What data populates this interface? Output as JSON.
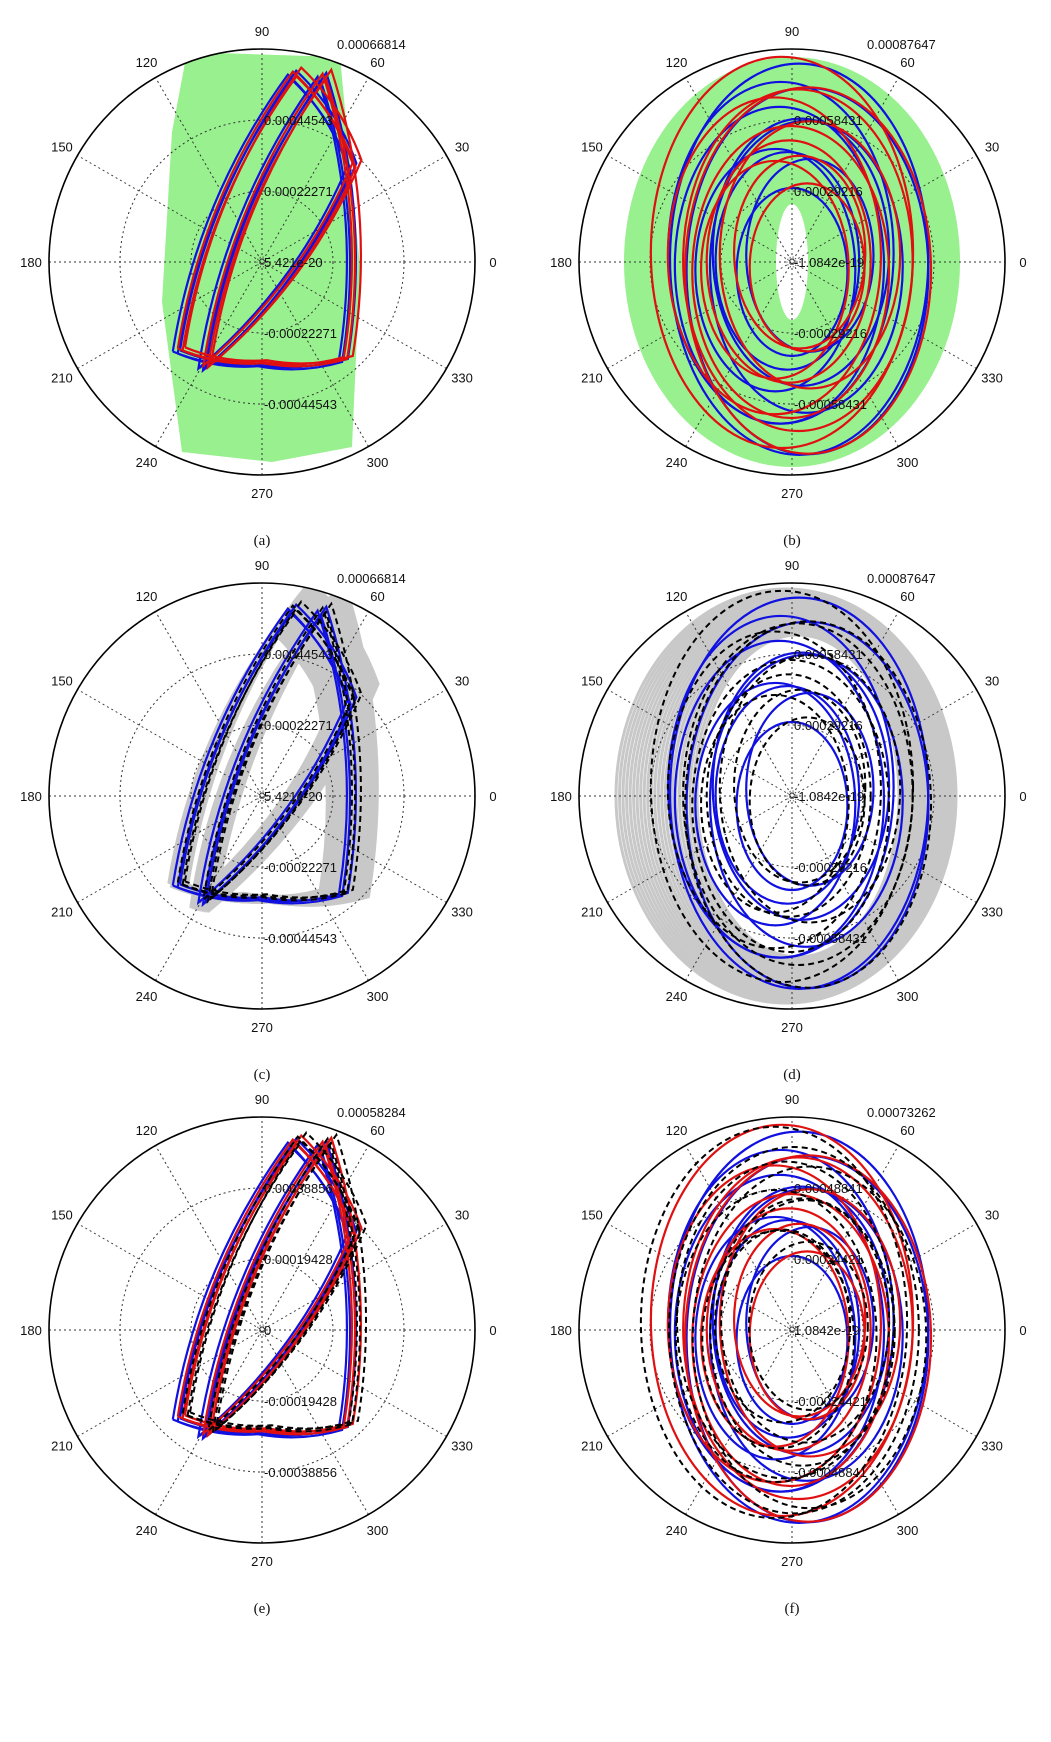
{
  "figure": {
    "panels": [
      {
        "caption": "(a)",
        "rmax_label": "0.00066814",
        "ring_labels": [
          "0.00044543",
          "0.00022271",
          "5.421e-20",
          "-0.00022271",
          "-0.00044543"
        ],
        "angle_labels": [
          "90",
          "60",
          "30",
          "0",
          "330",
          "300",
          "270",
          "240",
          "210",
          "180",
          "150",
          "120"
        ],
        "envelope": {
          "type": "band",
          "color": "#99f08f",
          "hole": false
        },
        "traces": [
          {
            "shape": "rose",
            "color": "#1010e0",
            "dash": "solid"
          },
          {
            "shape": "rose",
            "color": "#e01010",
            "dash": "solid"
          }
        ]
      },
      {
        "caption": "(b)",
        "rmax_label": "0.00087647",
        "ring_labels": [
          "0.00058431",
          "0.00029216",
          "-1.0842e-19",
          "-0.00029216",
          "-0.00058431"
        ],
        "angle_labels": [
          "90",
          "60",
          "30",
          "0",
          "330",
          "300",
          "270",
          "240",
          "210",
          "180",
          "150",
          "120"
        ],
        "envelope": {
          "type": "band",
          "color": "#99f08f",
          "hole": true
        },
        "traces": [
          {
            "shape": "ellipses",
            "color": "#1010e0",
            "dash": "solid"
          },
          {
            "shape": "ellipses",
            "color": "#e01010",
            "dash": "solid"
          }
        ]
      },
      {
        "caption": "(c)",
        "rmax_label": "0.00066814",
        "ring_labels": [
          "0.00044543",
          "0.00022271",
          "5.421e-20",
          "-0.00022271",
          "-0.00044543"
        ],
        "angle_labels": [
          "90",
          "60",
          "30",
          "0",
          "330",
          "300",
          "270",
          "240",
          "210",
          "180",
          "150",
          "120"
        ],
        "envelope": {
          "type": "samples",
          "color": "#c8c8c8",
          "hole": false
        },
        "traces": [
          {
            "shape": "rose",
            "color": "#1010e0",
            "dash": "solid"
          },
          {
            "shape": "rose",
            "color": "#000000",
            "dash": "dashed"
          }
        ]
      },
      {
        "caption": "(d)",
        "rmax_label": "0.00087647",
        "ring_labels": [
          "0.00058431",
          "0.00029216",
          "-1.0842e-19",
          "-0.00029216",
          "-0.00058431"
        ],
        "angle_labels": [
          "90",
          "60",
          "30",
          "0",
          "330",
          "300",
          "270",
          "240",
          "210",
          "180",
          "150",
          "120"
        ],
        "envelope": {
          "type": "samples",
          "color": "#c8c8c8",
          "hole": true
        },
        "traces": [
          {
            "shape": "ellipses",
            "color": "#1010e0",
            "dash": "solid"
          },
          {
            "shape": "ellipses",
            "color": "#000000",
            "dash": "dashed"
          }
        ]
      },
      {
        "caption": "(e)",
        "rmax_label": "0.00058284",
        "ring_labels": [
          "0.00038856",
          "0.00019428",
          "0",
          "-0.00019428",
          "-0.00038856"
        ],
        "angle_labels": [
          "90",
          "60",
          "30",
          "0",
          "330",
          "300",
          "270",
          "240",
          "210",
          "180",
          "150",
          "120"
        ],
        "envelope": {
          "type": "none",
          "color": "",
          "hole": false
        },
        "traces": [
          {
            "shape": "rose",
            "color": "#1010e0",
            "dash": "solid"
          },
          {
            "shape": "rose",
            "color": "#e01010",
            "dash": "solid"
          },
          {
            "shape": "rose",
            "color": "#000000",
            "dash": "dashed"
          }
        ]
      },
      {
        "caption": "(f)",
        "rmax_label": "0.00073262",
        "ring_labels": [
          "0.00048841",
          "0.00024421",
          "1.0842e-19",
          "-0.00024421",
          "-0.00048841"
        ],
        "angle_labels": [
          "90",
          "60",
          "30",
          "0",
          "330",
          "300",
          "270",
          "240",
          "210",
          "180",
          "150",
          "120"
        ],
        "envelope": {
          "type": "none",
          "color": "",
          "hole": false
        },
        "traces": [
          {
            "shape": "ellipses",
            "color": "#1010e0",
            "dash": "solid"
          },
          {
            "shape": "ellipses",
            "color": "#e01010",
            "dash": "solid"
          },
          {
            "shape": "ellipses",
            "color": "#000000",
            "dash": "dashed"
          }
        ]
      }
    ]
  },
  "chart_data": [
    {
      "type": "polar",
      "panel": "(a)",
      "rmax": 0.00066814,
      "rings": [
        0.00044543,
        0.00022271,
        5.421e-20,
        -0.00022271,
        -0.00044543
      ],
      "theta_ticks": [
        0,
        30,
        60,
        90,
        120,
        150,
        180,
        210,
        240,
        270,
        300,
        330
      ],
      "grid": true,
      "series": [
        {
          "color": "#1010e0"
        },
        {
          "color": "#e01010"
        }
      ]
    },
    {
      "type": "polar",
      "panel": "(b)",
      "rmax": 0.00087647,
      "rings": [
        0.00058431,
        0.00029216,
        -1.0842e-19,
        -0.00029216,
        -0.00058431
      ],
      "theta_ticks": [
        0,
        30,
        60,
        90,
        120,
        150,
        180,
        210,
        240,
        270,
        300,
        330
      ],
      "grid": true,
      "series": [
        {
          "color": "#1010e0"
        },
        {
          "color": "#e01010"
        }
      ]
    },
    {
      "type": "polar",
      "panel": "(c)",
      "rmax": 0.00066814,
      "rings": [
        0.00044543,
        0.00022271,
        5.421e-20,
        -0.00022271,
        -0.00044543
      ],
      "theta_ticks": [
        0,
        30,
        60,
        90,
        120,
        150,
        180,
        210,
        240,
        270,
        300,
        330
      ],
      "grid": true,
      "series": [
        {
          "color": "#1010e0"
        },
        {
          "color": "#000000"
        }
      ]
    },
    {
      "type": "polar",
      "panel": "(d)",
      "rmax": 0.00087647,
      "rings": [
        0.00058431,
        0.00029216,
        -1.0842e-19,
        -0.00029216,
        -0.00058431
      ],
      "theta_ticks": [
        0,
        30,
        60,
        90,
        120,
        150,
        180,
        210,
        240,
        270,
        300,
        330
      ],
      "grid": true,
      "series": [
        {
          "color": "#1010e0"
        },
        {
          "color": "#000000"
        }
      ]
    },
    {
      "type": "polar",
      "panel": "(e)",
      "rmax": 0.00058284,
      "rings": [
        0.00038856,
        0.00019428,
        0,
        -0.00019428,
        -0.00038856
      ],
      "theta_ticks": [
        0,
        30,
        60,
        90,
        120,
        150,
        180,
        210,
        240,
        270,
        300,
        330
      ],
      "grid": true,
      "series": [
        {
          "color": "#1010e0"
        },
        {
          "color": "#e01010"
        },
        {
          "color": "#000000"
        }
      ]
    },
    {
      "type": "polar",
      "panel": "(f)",
      "rmax": 0.00073262,
      "rings": [
        0.00048841,
        0.00024421,
        1.0842e-19,
        -0.00024421,
        -0.00048841
      ],
      "theta_ticks": [
        0,
        30,
        60,
        90,
        120,
        150,
        180,
        210,
        240,
        270,
        300,
        330
      ],
      "grid": true,
      "series": [
        {
          "color": "#1010e0"
        },
        {
          "color": "#e01010"
        },
        {
          "color": "#000000"
        }
      ]
    }
  ]
}
